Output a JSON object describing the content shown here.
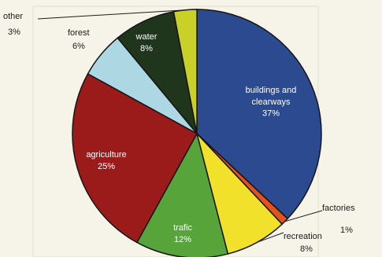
{
  "chart_data": {
    "type": "pie",
    "title": "",
    "start_at": "12 o'clock",
    "direction": "clockwise",
    "slices": [
      {
        "label": "buildings and clearways",
        "value": 37,
        "value_label": "37%",
        "color": "#2c4a8f",
        "text_color": "#ffffff"
      },
      {
        "label": "factories",
        "value": 1,
        "value_label": "1%",
        "color": "#e3521b",
        "text_color": "#1b1b1b"
      },
      {
        "label": "recreation",
        "value": 8,
        "value_label": "8%",
        "color": "#f1e12a",
        "text_color": "#1b1b1b"
      },
      {
        "label": "trafic",
        "value": 12,
        "value_label": "12%",
        "color": "#57a53a",
        "text_color": "#ffffff"
      },
      {
        "label": "agriculture",
        "value": 25,
        "value_label": "25%",
        "color": "#9b1b1b",
        "text_color": "#ffffff"
      },
      {
        "label": "forest",
        "value": 6,
        "value_label": "6%",
        "color": "#add8e3",
        "text_color": "#1b1b1b"
      },
      {
        "label": "water",
        "value": 8,
        "value_label": "8%",
        "color": "#1f351c",
        "text_color": "#ffffff"
      },
      {
        "label": "other",
        "value": 3,
        "value_label": "3%",
        "color": "#c9d028",
        "text_color": "#1b1b1b"
      }
    ]
  }
}
